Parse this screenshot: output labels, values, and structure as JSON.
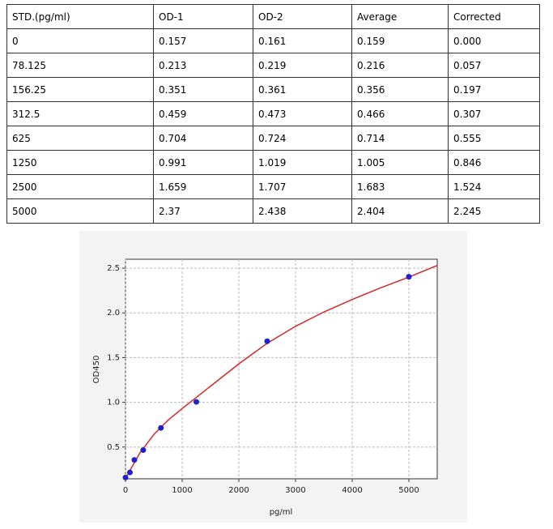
{
  "table": {
    "header": [
      "STD.(pg/ml)",
      "OD-1",
      "OD-2",
      "Average",
      "Corrected"
    ],
    "rows": [
      [
        "0",
        "0.157",
        "0.161",
        "0.159",
        "0.000"
      ],
      [
        "78.125",
        "0.213",
        "0.219",
        "0.216",
        "0.057"
      ],
      [
        "156.25",
        "0.351",
        "0.361",
        "0.356",
        "0.197"
      ],
      [
        "312.5",
        "0.459",
        "0.473",
        "0.466",
        "0.307"
      ],
      [
        "625",
        "0.704",
        "0.724",
        "0.714",
        "0.555"
      ],
      [
        "1250",
        "0.991",
        "1.019",
        "1.005",
        "0.846"
      ],
      [
        "2500",
        "1.659",
        "1.707",
        "1.683",
        "1.524"
      ],
      [
        "5000",
        "2.37",
        "2.438",
        "2.404",
        "2.245"
      ]
    ]
  },
  "chart_data": {
    "type": "scatter",
    "x_label": "pg/ml",
    "y_label": "OD450",
    "x": [
      0,
      78.125,
      156.25,
      312.5,
      625,
      1250,
      2500,
      5000
    ],
    "values": [
      0.159,
      0.216,
      0.356,
      0.466,
      0.714,
      1.005,
      1.683,
      2.404
    ],
    "color": "#1f1fcf",
    "curve": {
      "x": [
        0,
        250,
        500,
        750,
        1000,
        1500,
        2000,
        2500,
        3000,
        3500,
        4000,
        4500,
        5000,
        5500
      ],
      "y": [
        0.15,
        0.43,
        0.64,
        0.8,
        0.93,
        1.18,
        1.43,
        1.66,
        1.85,
        2.01,
        2.15,
        2.28,
        2.4,
        2.53
      ],
      "color": "#d62728"
    },
    "xlim": [
      0,
      5500
    ],
    "xticks": [
      0,
      1000,
      2000,
      3000,
      4000,
      5000
    ],
    "ylim": [
      0.145,
      2.6
    ],
    "yticks": [
      0.5,
      {
        "value": 1,
        "label": "1.0"
      },
      1.5,
      {
        "value": 2,
        "label": "2.0"
      },
      2.5
    ],
    "grid": true
  }
}
